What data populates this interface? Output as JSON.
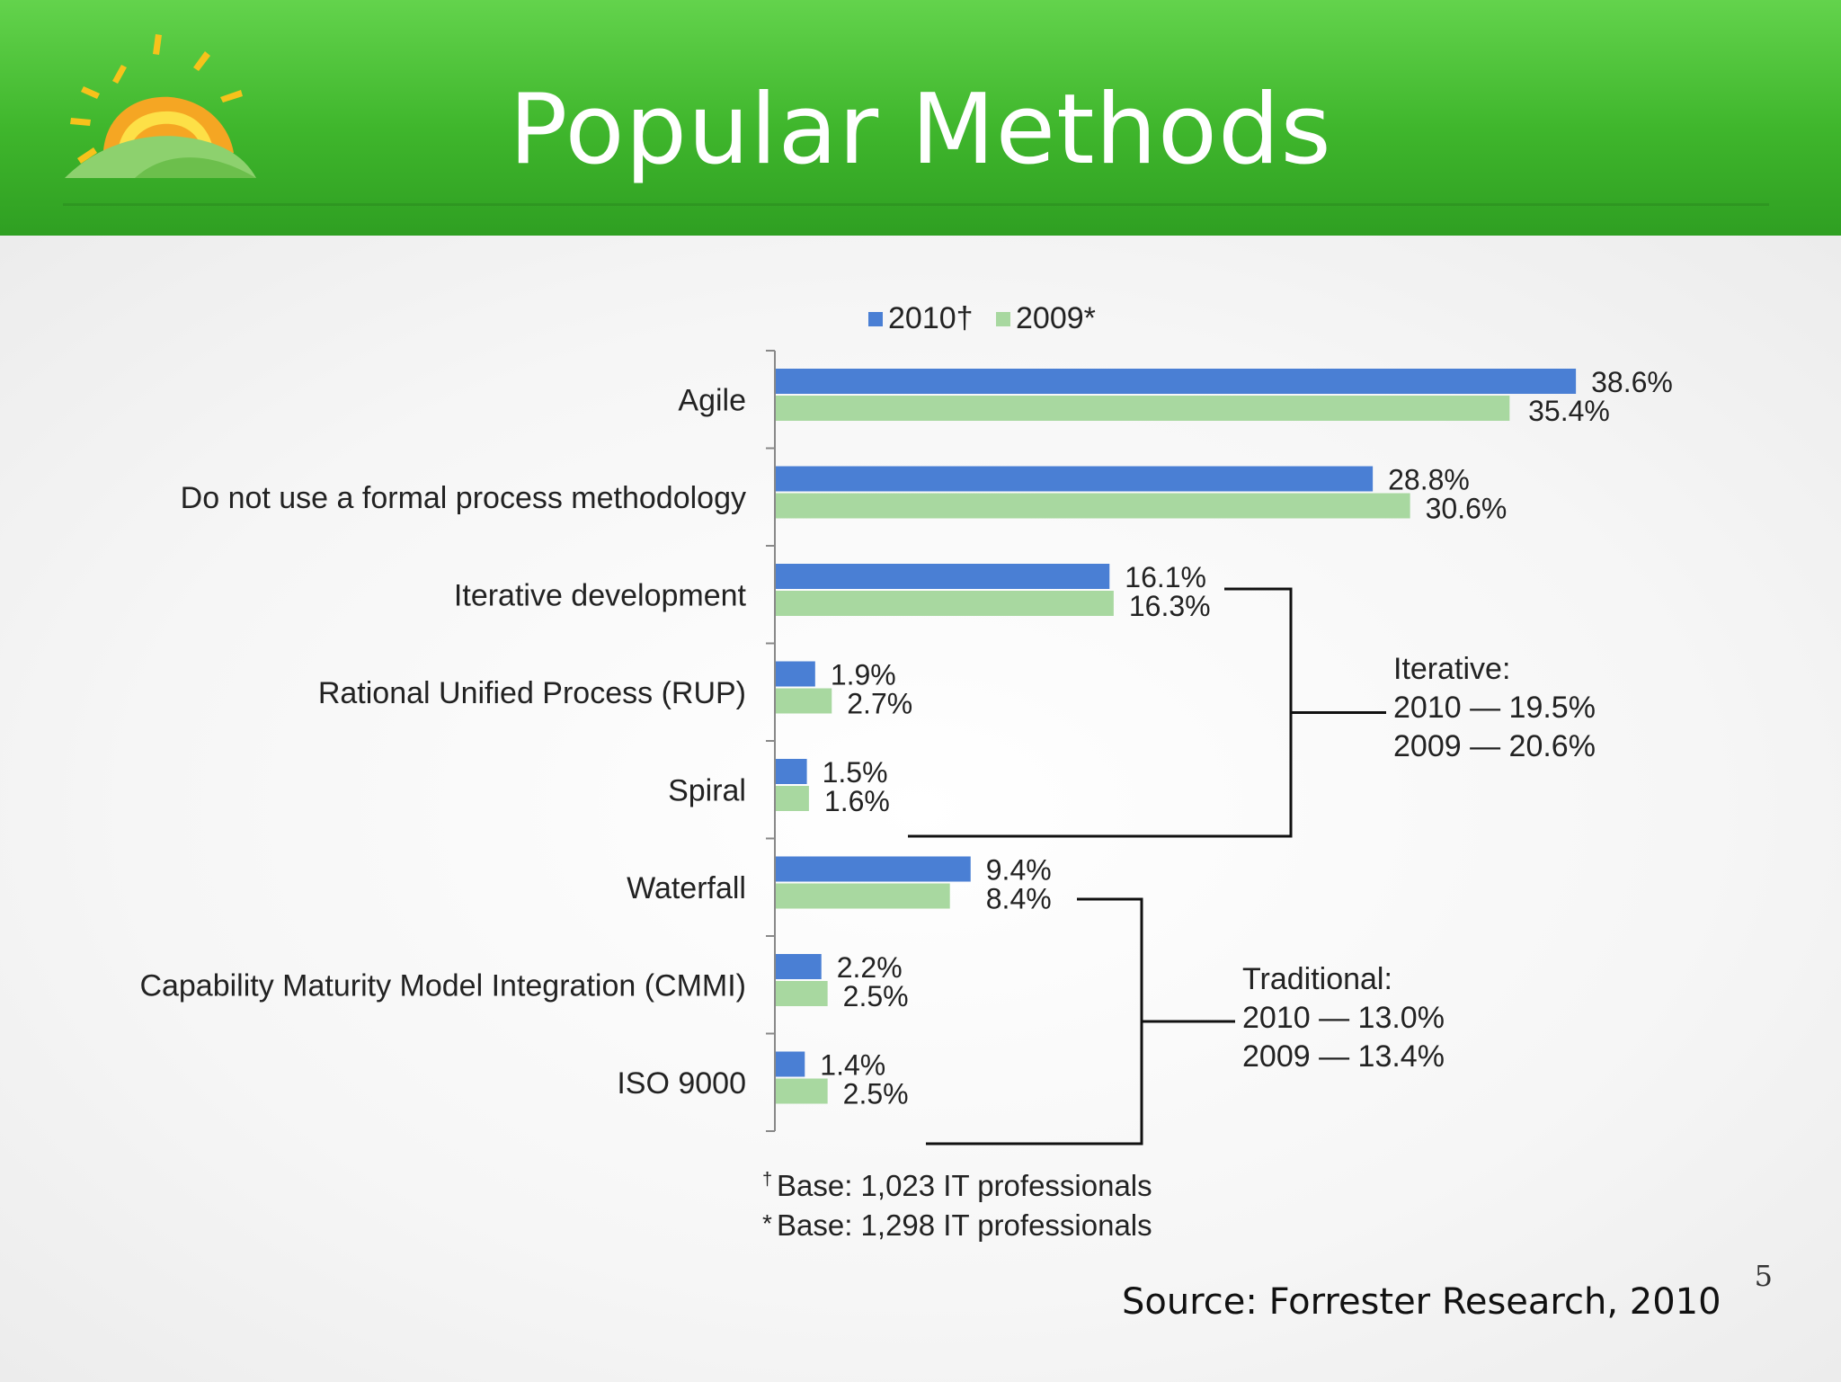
{
  "slide": {
    "title": "Popular Methods",
    "source": "Source: Forrester Research, 2010",
    "page_number": "5",
    "colors": {
      "header_green": "#3fb62c",
      "bar_2010": "#4a7fd4",
      "bar_2009": "#a8d8a0"
    }
  },
  "chart_data": {
    "type": "bar",
    "orientation": "horizontal",
    "categories": [
      "Agile",
      "Do not use a formal process methodology",
      "Iterative development",
      "Rational Unified Process (RUP)",
      "Spiral",
      "Waterfall",
      "Capability Maturity Model Integration (CMMI)",
      "ISO 9000"
    ],
    "series": [
      {
        "name": "2010†",
        "color": "#4a7fd4",
        "values": [
          38.6,
          28.8,
          16.1,
          1.9,
          1.5,
          9.4,
          2.2,
          1.4
        ],
        "labels": [
          "38.6%",
          "28.8%",
          "16.1%",
          "1.9%",
          "1.5%",
          "9.4%",
          "2.2%",
          "1.4%"
        ]
      },
      {
        "name": "2009*",
        "color": "#a8d8a0",
        "values": [
          35.4,
          30.6,
          16.3,
          2.7,
          1.6,
          8.4,
          2.5,
          2.5
        ],
        "labels": [
          "35.4%",
          "30.6%",
          "16.3%",
          "2.7%",
          "1.6%",
          "8.4%",
          "2.5%",
          "2.5%"
        ]
      }
    ],
    "legend_position": "top",
    "grid": false,
    "annotations": [
      {
        "group": "iterative",
        "first": 2,
        "last": 4,
        "lines": [
          "Iterative:",
          "2010 — 19.5%",
          "2009 — 20.6%"
        ]
      },
      {
        "group": "traditional",
        "first": 5,
        "last": 7,
        "lines": [
          "Traditional:",
          "2010 — 13.0%",
          "2009 — 13.4%"
        ]
      }
    ],
    "footnotes": [
      {
        "mark": "†",
        "text": "Base: 1,023 IT professionals"
      },
      {
        "mark": "*",
        "text": "Base: 1,298 IT professionals"
      }
    ]
  }
}
